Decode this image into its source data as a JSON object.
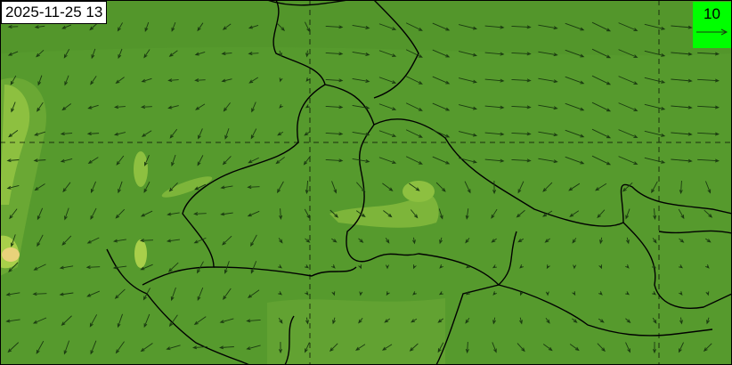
{
  "map": {
    "timestamp": "2025-11-25 13",
    "legend": {
      "reference_vector_value": "10",
      "background_color": "#00ff00"
    },
    "colors": {
      "base": "#569a2d",
      "light": "#7db53a",
      "lighter": "#a8cf4a",
      "highlight": "#e8d27a",
      "border": "#000000",
      "arrow": "#1a3a10"
    },
    "layers": [
      "wind-vectors",
      "filled-contours",
      "state-boundaries",
      "lat-lon-grid"
    ]
  }
}
